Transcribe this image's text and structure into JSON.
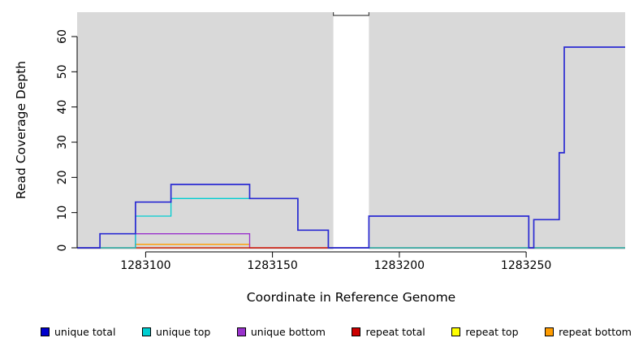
{
  "figure": {
    "xlabel": "Coordinate in Reference Genome",
    "ylabel": "Read Coverage Depth",
    "panel_bg": "#d9d9d9",
    "axis_color": "#000000"
  },
  "chart_data": {
    "type": "line",
    "step": true,
    "title": "",
    "xlabel": "Coordinate in Reference Genome",
    "ylabel": "Read Coverage Depth",
    "xlim": [
      1283073,
      1283289
    ],
    "ylim": [
      0,
      67
    ],
    "x_ticks": [
      1283100,
      1283150,
      1283200,
      1283250
    ],
    "y_ticks": [
      0,
      10,
      20,
      30,
      40,
      50,
      60
    ],
    "grid": false,
    "legend_position": "bottom",
    "masked_region": {
      "x0": 1283174,
      "x1": 1283188,
      "clip_value": 66
    },
    "draw_order": [
      "repeat top",
      "repeat bottom",
      "unique bottom",
      "repeat total",
      "unique top",
      "unique total"
    ],
    "series": [
      {
        "name": "unique total",
        "color": "#2a2ad2",
        "points": [
          [
            1283073,
            0
          ],
          [
            1283082,
            4
          ],
          [
            1283096,
            13
          ],
          [
            1283110,
            18
          ],
          [
            1283141,
            14
          ],
          [
            1283160,
            5
          ],
          [
            1283172,
            0
          ],
          [
            1283188,
            9
          ],
          [
            1283251,
            0
          ],
          [
            1283253,
            8
          ],
          [
            1283263,
            27
          ],
          [
            1283265,
            57
          ],
          [
            1283289,
            57
          ]
        ]
      },
      {
        "name": "unique top",
        "color": "#00ced1",
        "points": [
          [
            1283073,
            0
          ],
          [
            1283096,
            9
          ],
          [
            1283110,
            14
          ],
          [
            1283160,
            5
          ],
          [
            1283172,
            0
          ],
          [
            1283289,
            0
          ]
        ]
      },
      {
        "name": "unique bottom",
        "color": "#9932cc",
        "points": [
          [
            1283073,
            0
          ],
          [
            1283096,
            4
          ],
          [
            1283141,
            0
          ],
          [
            1283289,
            0
          ]
        ]
      },
      {
        "name": "repeat total",
        "color": "#cc0000",
        "points": [
          [
            1283073,
            0
          ],
          [
            1283289,
            0
          ]
        ]
      },
      {
        "name": "repeat top",
        "color": "#ffff00",
        "points": [
          [
            1283073,
            0
          ],
          [
            1283289,
            0
          ]
        ]
      },
      {
        "name": "repeat bottom",
        "color": "#ff9c00",
        "points": [
          [
            1283073,
            0
          ],
          [
            1283096,
            1
          ],
          [
            1283141,
            0
          ],
          [
            1283289,
            0
          ]
        ]
      }
    ]
  },
  "legend": {
    "items": [
      {
        "label": "unique total",
        "color": "#0000cc"
      },
      {
        "label": "unique top",
        "color": "#00ced1"
      },
      {
        "label": "unique bottom",
        "color": "#9932cc"
      },
      {
        "label": "repeat total",
        "color": "#cc0000"
      },
      {
        "label": "repeat top",
        "color": "#ffff00"
      },
      {
        "label": "repeat bottom",
        "color": "#ff9c00"
      }
    ]
  }
}
